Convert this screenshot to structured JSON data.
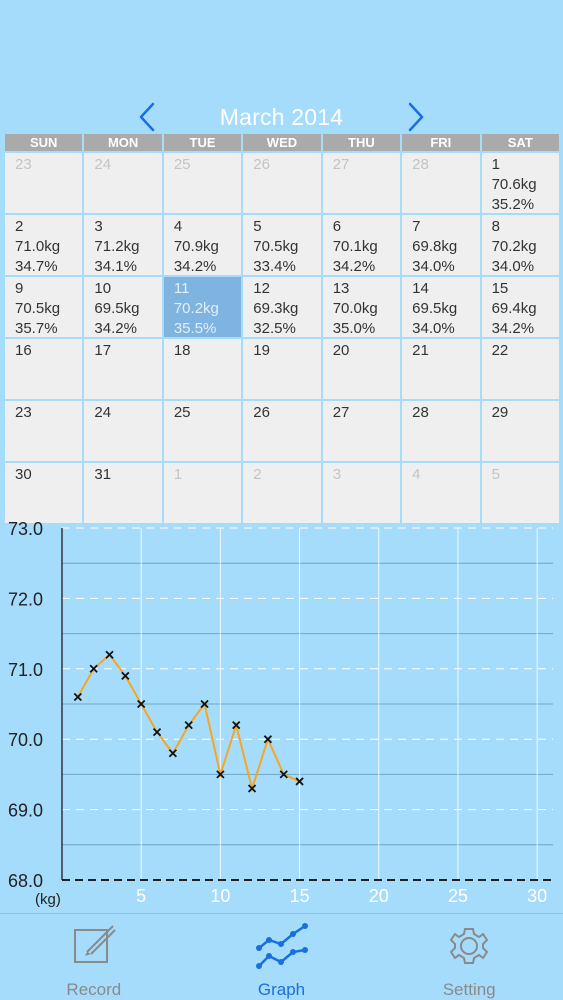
{
  "header": {
    "title": "March 2014"
  },
  "calendar": {
    "days_of_week": [
      "SUN",
      "MON",
      "TUE",
      "WED",
      "THU",
      "FRI",
      "SAT"
    ],
    "cells": [
      {
        "day": "23",
        "weight": "",
        "fat": "",
        "other": true
      },
      {
        "day": "24",
        "weight": "",
        "fat": "",
        "other": true
      },
      {
        "day": "25",
        "weight": "",
        "fat": "",
        "other": true
      },
      {
        "day": "26",
        "weight": "",
        "fat": "",
        "other": true
      },
      {
        "day": "27",
        "weight": "",
        "fat": "",
        "other": true
      },
      {
        "day": "28",
        "weight": "",
        "fat": "",
        "other": true
      },
      {
        "day": "1",
        "weight": "70.6kg",
        "fat": "35.2%"
      },
      {
        "day": "2",
        "weight": "71.0kg",
        "fat": "34.7%"
      },
      {
        "day": "3",
        "weight": "71.2kg",
        "fat": "34.1%"
      },
      {
        "day": "4",
        "weight": "70.9kg",
        "fat": "34.2%"
      },
      {
        "day": "5",
        "weight": "70.5kg",
        "fat": "33.4%"
      },
      {
        "day": "6",
        "weight": "70.1kg",
        "fat": "34.2%"
      },
      {
        "day": "7",
        "weight": "69.8kg",
        "fat": "34.0%"
      },
      {
        "day": "8",
        "weight": "70.2kg",
        "fat": "34.0%"
      },
      {
        "day": "9",
        "weight": "70.5kg",
        "fat": "35.7%"
      },
      {
        "day": "10",
        "weight": "69.5kg",
        "fat": "34.2%"
      },
      {
        "day": "11",
        "weight": "70.2kg",
        "fat": "35.5%",
        "selected": true
      },
      {
        "day": "12",
        "weight": "69.3kg",
        "fat": "32.5%"
      },
      {
        "day": "13",
        "weight": "70.0kg",
        "fat": "35.0%"
      },
      {
        "day": "14",
        "weight": "69.5kg",
        "fat": "34.0%"
      },
      {
        "day": "15",
        "weight": "69.4kg",
        "fat": "34.2%"
      },
      {
        "day": "16",
        "weight": "",
        "fat": ""
      },
      {
        "day": "17",
        "weight": "",
        "fat": ""
      },
      {
        "day": "18",
        "weight": "",
        "fat": ""
      },
      {
        "day": "19",
        "weight": "",
        "fat": ""
      },
      {
        "day": "20",
        "weight": "",
        "fat": ""
      },
      {
        "day": "21",
        "weight": "",
        "fat": ""
      },
      {
        "day": "22",
        "weight": "",
        "fat": ""
      },
      {
        "day": "23",
        "weight": "",
        "fat": ""
      },
      {
        "day": "24",
        "weight": "",
        "fat": ""
      },
      {
        "day": "25",
        "weight": "",
        "fat": ""
      },
      {
        "day": "26",
        "weight": "",
        "fat": ""
      },
      {
        "day": "27",
        "weight": "",
        "fat": ""
      },
      {
        "day": "28",
        "weight": "",
        "fat": ""
      },
      {
        "day": "29",
        "weight": "",
        "fat": ""
      },
      {
        "day": "30",
        "weight": "",
        "fat": ""
      },
      {
        "day": "31",
        "weight": "",
        "fat": ""
      },
      {
        "day": "1",
        "weight": "",
        "fat": "",
        "other": true
      },
      {
        "day": "2",
        "weight": "",
        "fat": "",
        "other": true
      },
      {
        "day": "3",
        "weight": "",
        "fat": "",
        "other": true
      },
      {
        "day": "4",
        "weight": "",
        "fat": "",
        "other": true
      },
      {
        "day": "5",
        "weight": "",
        "fat": "",
        "other": true
      }
    ]
  },
  "chart_data": {
    "type": "line",
    "x": [
      1,
      2,
      3,
      4,
      5,
      6,
      7,
      8,
      9,
      10,
      11,
      12,
      13,
      14,
      15
    ],
    "series": [
      {
        "values": [
          70.6,
          71.0,
          71.2,
          70.9,
          70.5,
          70.1,
          69.8,
          70.2,
          70.5,
          69.5,
          70.2,
          69.3,
          70.0,
          69.5,
          69.4
        ]
      }
    ],
    "xlim": [
      0,
      31
    ],
    "ylim": [
      68.0,
      73.0
    ],
    "y_ticks": [
      "73.0",
      "72.0",
      "71.0",
      "70.0",
      "69.0",
      "68.0"
    ],
    "x_ticks": [
      "5",
      "10",
      "15",
      "20",
      "25",
      "30"
    ],
    "ylabel": "(kg)",
    "grid": true,
    "line_color": "#f5a623",
    "marker": "x"
  },
  "tabs": [
    {
      "label": "Record",
      "icon": "pencil-square-icon",
      "active": false
    },
    {
      "label": "Graph",
      "icon": "graph-icon",
      "active": true
    },
    {
      "label": "Setting",
      "icon": "gear-icon",
      "active": false
    }
  ],
  "colors": {
    "background": "#a6dcfb",
    "accent": "#1a6fe0",
    "selected_cell": "#7fb4e0",
    "line": "#f5a623"
  }
}
